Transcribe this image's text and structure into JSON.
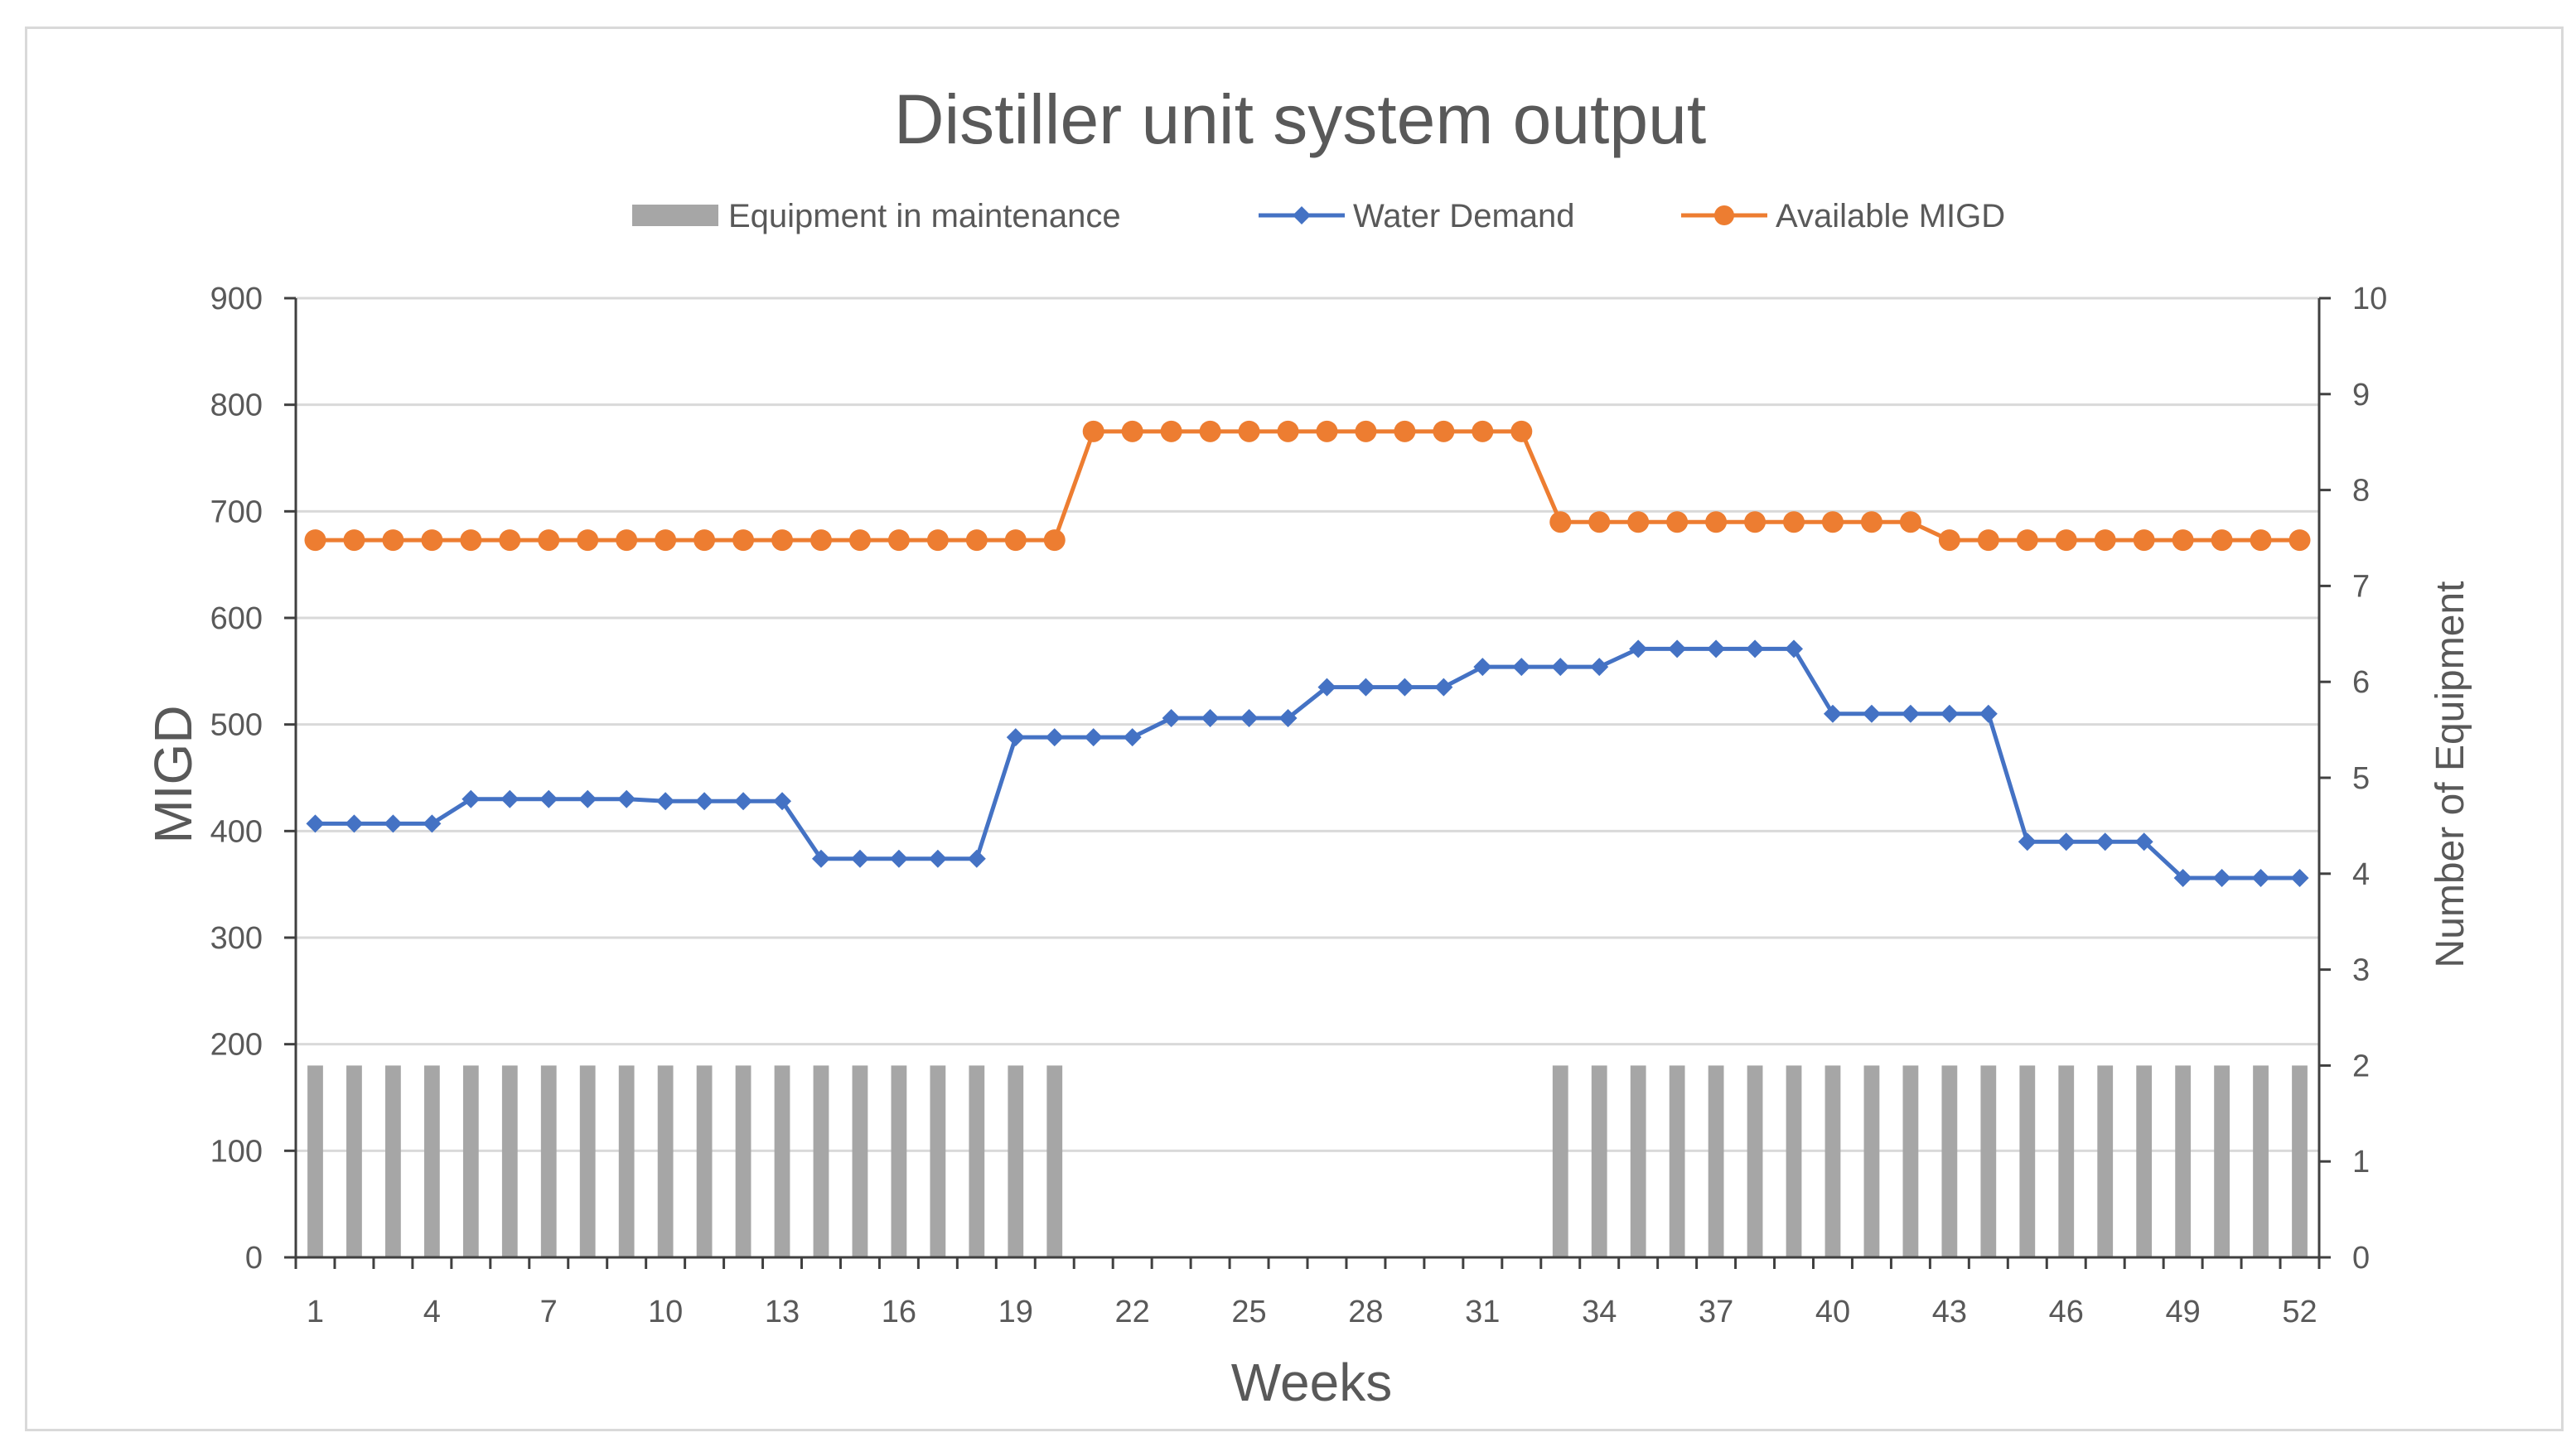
{
  "chart_data": {
    "type": "bar+line",
    "title": "Distiller unit system output",
    "xlabel": "Weeks",
    "ylabel": "MIGD",
    "y2label": "Number of Equipment",
    "x": [
      1,
      2,
      3,
      4,
      5,
      6,
      7,
      8,
      9,
      10,
      11,
      12,
      13,
      14,
      15,
      16,
      17,
      18,
      19,
      20,
      21,
      22,
      23,
      24,
      25,
      26,
      27,
      28,
      29,
      30,
      31,
      32,
      33,
      34,
      35,
      36,
      37,
      38,
      39,
      40,
      41,
      42,
      43,
      44,
      45,
      46,
      47,
      48,
      49,
      50,
      51,
      52
    ],
    "x_ticks": [
      1,
      4,
      7,
      10,
      13,
      16,
      19,
      22,
      25,
      28,
      31,
      34,
      37,
      40,
      43,
      46,
      49,
      52
    ],
    "ylim": [
      0,
      900
    ],
    "y_ticks": [
      0,
      100,
      200,
      300,
      400,
      500,
      600,
      700,
      800,
      900
    ],
    "y2lim": [
      0,
      10
    ],
    "y2_ticks": [
      0,
      1,
      2,
      3,
      4,
      5,
      6,
      7,
      8,
      9,
      10
    ],
    "grid": true,
    "legend_position": "top",
    "series": [
      {
        "name": "Equipment in maintenance",
        "kind": "bar",
        "axis": "right",
        "color": "#a6a6a6",
        "values": [
          2,
          2,
          2,
          2,
          2,
          2,
          2,
          2,
          2,
          2,
          2,
          2,
          2,
          2,
          2,
          2,
          2,
          2,
          2,
          2,
          0,
          0,
          0,
          0,
          0,
          0,
          0,
          0,
          0,
          0,
          0,
          0,
          2,
          2,
          2,
          2,
          2,
          2,
          2,
          2,
          2,
          2,
          2,
          2,
          2,
          2,
          2,
          2,
          2,
          2,
          2,
          2
        ]
      },
      {
        "name": "Water Demand",
        "kind": "line",
        "marker": "diamond",
        "axis": "left",
        "color": "#4472c4",
        "values": [
          407,
          407,
          407,
          407,
          430,
          430,
          430,
          430,
          430,
          428,
          428,
          428,
          428,
          374,
          374,
          374,
          374,
          374,
          488,
          488,
          488,
          488,
          506,
          506,
          506,
          506,
          535,
          535,
          535,
          535,
          554,
          554,
          554,
          554,
          571,
          571,
          571,
          571,
          571,
          510,
          510,
          510,
          510,
          510,
          390,
          390,
          390,
          390,
          356,
          356,
          356,
          356
        ]
      },
      {
        "name": "Available MIGD",
        "kind": "line",
        "marker": "circle",
        "axis": "left",
        "color": "#ed7d31",
        "values": [
          673,
          673,
          673,
          673,
          673,
          673,
          673,
          673,
          673,
          673,
          673,
          673,
          673,
          673,
          673,
          673,
          673,
          673,
          673,
          673,
          775,
          775,
          775,
          775,
          775,
          775,
          775,
          775,
          775,
          775,
          775,
          775,
          690,
          690,
          690,
          690,
          690,
          690,
          690,
          690,
          690,
          690,
          673,
          673,
          673,
          673,
          673,
          673,
          673,
          673,
          673,
          673
        ]
      }
    ]
  }
}
